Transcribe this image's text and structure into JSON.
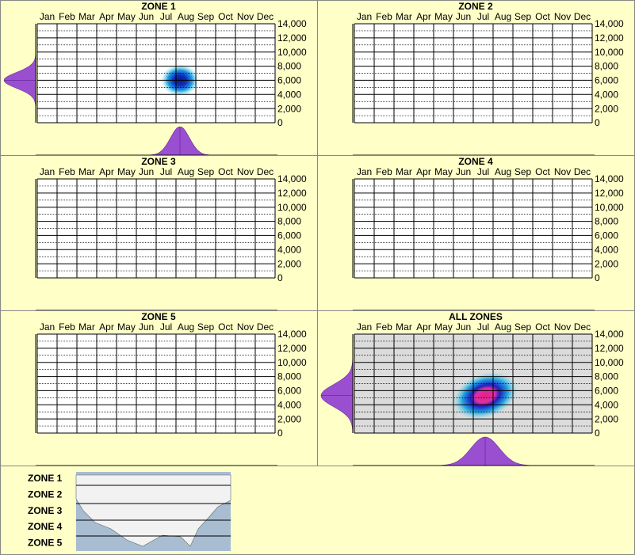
{
  "chart_data": [
    {
      "type": "density",
      "title": "ZONE 1",
      "categories": [
        "Jan",
        "Feb",
        "Mar",
        "Apr",
        "May",
        "Jun",
        "Jul",
        "Aug",
        "Sep",
        "Oct",
        "Nov",
        "Dec"
      ],
      "ylim": [
        0,
        14000
      ],
      "yticks": [
        0,
        {
          "value": 2000,
          "label": "2,000"
        },
        {
          "value": 4000,
          "label": "4,000"
        },
        {
          "value": 6000,
          "label": "6,000"
        },
        {
          "value": 8000,
          "label": "8,000"
        },
        {
          "value": 10000,
          "label": "10,000"
        },
        {
          "value": 12000,
          "label": "12,000"
        },
        {
          "value": 14000,
          "label": "14,000"
        }
      ],
      "peak": {
        "x": 7.2,
        "y": 6000
      },
      "color": "#1030c0",
      "grid": true
    },
    {
      "type": "density",
      "title": "ZONE 2",
      "categories": [
        "Jan",
        "Feb",
        "Mar",
        "Apr",
        "May",
        "Jun",
        "Jul",
        "Aug",
        "Sep",
        "Oct",
        "Nov",
        "Dec"
      ],
      "ylim": [
        0,
        14000
      ],
      "yticks": [
        0,
        {
          "value": 2000,
          "label": "2,000"
        },
        {
          "value": 4000,
          "label": "4,000"
        },
        {
          "value": 6000,
          "label": "6,000"
        },
        {
          "value": 8000,
          "label": "8,000"
        },
        {
          "value": 10000,
          "label": "10,000"
        },
        {
          "value": 12000,
          "label": "12,000"
        },
        {
          "value": 14000,
          "label": "14,000"
        }
      ],
      "grid": true
    },
    {
      "type": "density",
      "title": "ZONE 3",
      "categories": [
        "Jan",
        "Feb",
        "Mar",
        "Apr",
        "May",
        "Jun",
        "Jul",
        "Aug",
        "Sep",
        "Oct",
        "Nov",
        "Dec"
      ],
      "ylim": [
        0,
        14000
      ],
      "yticks": [
        0,
        {
          "value": 2000,
          "label": "2,000"
        },
        {
          "value": 4000,
          "label": "4,000"
        },
        {
          "value": 6000,
          "label": "6,000"
        },
        {
          "value": 8000,
          "label": "8,000"
        },
        {
          "value": 10000,
          "label": "10,000"
        },
        {
          "value": 12000,
          "label": "12,000"
        },
        {
          "value": 14000,
          "label": "14,000"
        }
      ],
      "grid": true
    },
    {
      "type": "density",
      "title": "ZONE 4",
      "categories": [
        "Jan",
        "Feb",
        "Mar",
        "Apr",
        "May",
        "Jun",
        "Jul",
        "Aug",
        "Sep",
        "Oct",
        "Nov",
        "Dec"
      ],
      "ylim": [
        0,
        14000
      ],
      "yticks": [
        0,
        {
          "value": 2000,
          "label": "2,000"
        },
        {
          "value": 4000,
          "label": "4,000"
        },
        {
          "value": 6000,
          "label": "6,000"
        },
        {
          "value": 8000,
          "label": "8,000"
        },
        {
          "value": 10000,
          "label": "10,000"
        },
        {
          "value": 12000,
          "label": "12,000"
        },
        {
          "value": 14000,
          "label": "14,000"
        }
      ],
      "grid": true
    },
    {
      "type": "density",
      "title": "ZONE 5",
      "categories": [
        "Jan",
        "Feb",
        "Mar",
        "Apr",
        "May",
        "Jun",
        "Jul",
        "Aug",
        "Sep",
        "Oct",
        "Nov",
        "Dec"
      ],
      "ylim": [
        0,
        14000
      ],
      "yticks": [
        0,
        {
          "value": 2000,
          "label": "2,000"
        },
        {
          "value": 4000,
          "label": "4,000"
        },
        {
          "value": 6000,
          "label": "6,000"
        },
        {
          "value": 8000,
          "label": "8,000"
        },
        {
          "value": 10000,
          "label": "10,000"
        },
        {
          "value": 12000,
          "label": "12,000"
        },
        {
          "value": 14000,
          "label": "14,000"
        }
      ],
      "grid": true
    },
    {
      "type": "density",
      "title": "ALL ZONES",
      "categories": [
        "Jan",
        "Feb",
        "Mar",
        "Apr",
        "May",
        "Jun",
        "Jul",
        "Aug",
        "Sep",
        "Oct",
        "Nov",
        "Dec"
      ],
      "ylim": [
        0,
        14000
      ],
      "yticks": [
        0,
        {
          "value": 2000,
          "label": "2,000"
        },
        {
          "value": 4000,
          "label": "4,000"
        },
        {
          "value": 6000,
          "label": "6,000"
        },
        {
          "value": 8000,
          "label": "8,000"
        },
        {
          "value": 10000,
          "label": "10,000"
        },
        {
          "value": 12000,
          "label": "12,000"
        },
        {
          "value": 14000,
          "label": "14,000"
        }
      ],
      "peak": {
        "x": 6.6,
        "y": 5300
      },
      "color": "#e0208a",
      "background": "#dcdcdc",
      "grid": true
    }
  ],
  "map_legend": {
    "labels": [
      "ZONE 1",
      "ZONE 2",
      "ZONE 3",
      "ZONE 4",
      "ZONE 5"
    ]
  }
}
